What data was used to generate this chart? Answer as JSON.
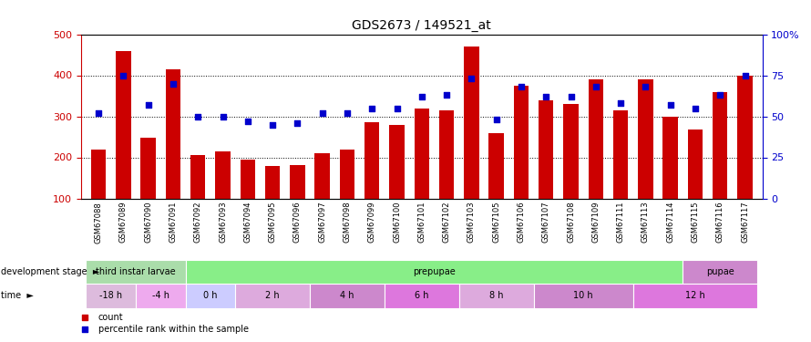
{
  "title": "GDS2673 / 149521_at",
  "samples": [
    "GSM67088",
    "GSM67089",
    "GSM67090",
    "GSM67091",
    "GSM67092",
    "GSM67093",
    "GSM67094",
    "GSM67095",
    "GSM67096",
    "GSM67097",
    "GSM67098",
    "GSM67099",
    "GSM67100",
    "GSM67101",
    "GSM67102",
    "GSM67103",
    "GSM67105",
    "GSM67106",
    "GSM67107",
    "GSM67108",
    "GSM67109",
    "GSM67111",
    "GSM67113",
    "GSM67114",
    "GSM67115",
    "GSM67116",
    "GSM67117"
  ],
  "counts": [
    220,
    460,
    248,
    415,
    205,
    215,
    195,
    180,
    182,
    210,
    220,
    285,
    280,
    320,
    315,
    470,
    258,
    375,
    340,
    330,
    390,
    315,
    390,
    300,
    268,
    360,
    400
  ],
  "percentiles": [
    52,
    75,
    57,
    70,
    50,
    50,
    47,
    45,
    46,
    52,
    52,
    55,
    55,
    62,
    63,
    73,
    48,
    68,
    62,
    62,
    68,
    58,
    68,
    57,
    55,
    63,
    75
  ],
  "ylim_left": [
    100,
    500
  ],
  "ylim_right": [
    0,
    100
  ],
  "bar_color": "#cc0000",
  "dot_color": "#0000cc",
  "bg_color": "#ffffff",
  "dev_stages": [
    {
      "label": "third instar larvae",
      "start": 0,
      "end": 4,
      "color": "#aaddaa"
    },
    {
      "label": "prepupae",
      "start": 4,
      "end": 24,
      "color": "#88ee88"
    },
    {
      "label": "pupae",
      "start": 24,
      "end": 27,
      "color": "#cc88cc"
    }
  ],
  "time_groups": [
    {
      "label": "-18 h",
      "start": 0,
      "end": 2,
      "color": "#ddbbdd"
    },
    {
      "label": "-4 h",
      "start": 2,
      "end": 4,
      "color": "#eeaaee"
    },
    {
      "label": "0 h",
      "start": 4,
      "end": 6,
      "color": "#ccccff"
    },
    {
      "label": "2 h",
      "start": 6,
      "end": 9,
      "color": "#ddaadd"
    },
    {
      "label": "4 h",
      "start": 9,
      "end": 12,
      "color": "#cc88cc"
    },
    {
      "label": "6 h",
      "start": 12,
      "end": 15,
      "color": "#dd77dd"
    },
    {
      "label": "8 h",
      "start": 15,
      "end": 18,
      "color": "#ddaadd"
    },
    {
      "label": "10 h",
      "start": 18,
      "end": 22,
      "color": "#cc88cc"
    },
    {
      "label": "12 h",
      "start": 22,
      "end": 27,
      "color": "#dd77dd"
    }
  ],
  "legend_count_label": "count",
  "legend_pct_label": "percentile rank within the sample"
}
